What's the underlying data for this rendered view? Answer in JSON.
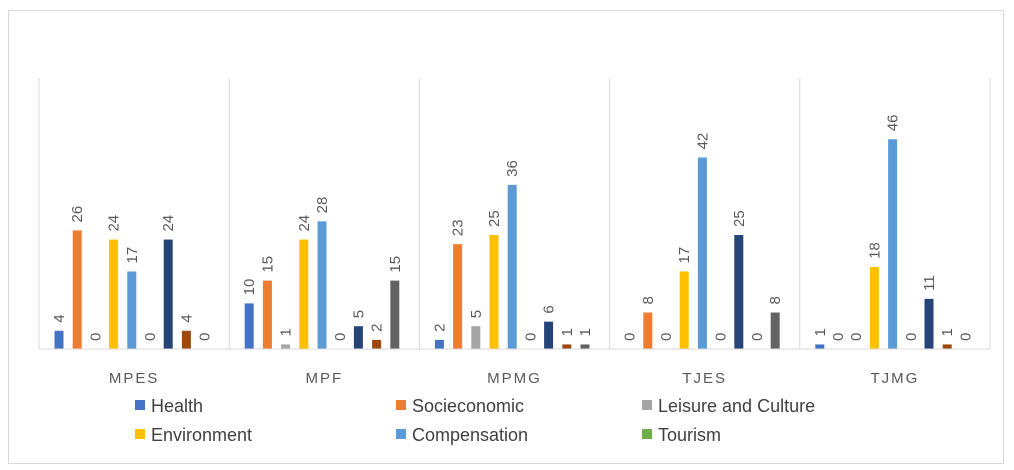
{
  "chart_data": {
    "type": "bar",
    "categories": [
      "MPES",
      "MPF",
      "MPMG",
      "TJES",
      "TJMG"
    ],
    "series": [
      {
        "name": "Health",
        "color": "#4472c4",
        "values": [
          4,
          10,
          2,
          0,
          1
        ]
      },
      {
        "name": "Socieconomic",
        "color": "#ed7d31",
        "values": [
          26,
          15,
          23,
          8,
          0
        ]
      },
      {
        "name": "Leisure and Culture",
        "color": "#a5a5a5",
        "values": [
          0,
          1,
          5,
          0,
          0
        ]
      },
      {
        "name": "Environment",
        "color": "#ffc000",
        "values": [
          24,
          24,
          25,
          17,
          18
        ]
      },
      {
        "name": "Compensation",
        "color": "#5b9bd5",
        "values": [
          17,
          28,
          36,
          42,
          46
        ]
      },
      {
        "name": "Tourism",
        "color": "#70ad47",
        "values": [
          0,
          0,
          0,
          0,
          0
        ]
      },
      {
        "name": "",
        "color": "#264478",
        "values": [
          24,
          5,
          6,
          25,
          11
        ]
      },
      {
        "name": "",
        "color": "#9e480e",
        "values": [
          4,
          2,
          1,
          0,
          1
        ]
      },
      {
        "name": "",
        "color": "#636363",
        "values": [
          0,
          15,
          1,
          8,
          0
        ]
      }
    ],
    "ylim": [
      0,
      60
    ],
    "grid": false,
    "legend": "bottom",
    "title": "",
    "xlabel": "",
    "ylabel": ""
  }
}
